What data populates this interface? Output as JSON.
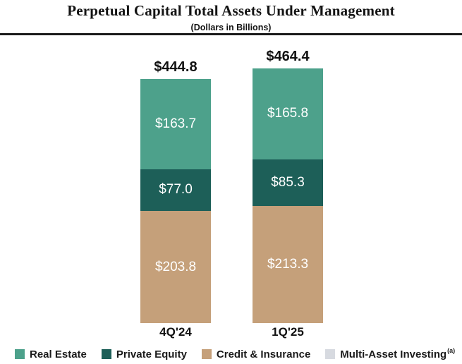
{
  "header": {
    "title": "Perpetual Capital Total Assets Under Management",
    "subtitle": "(Dollars in Billions)"
  },
  "colors": {
    "real_estate": "#4DA18B",
    "private_equity": "#1D5F58",
    "credit_insurance": "#C5A07A",
    "multi_asset_investing": "#D7DAE0",
    "text": "#141414",
    "bar_label_text": "#FFFFFF",
    "divider": "#1A1A1A"
  },
  "chart_data": {
    "type": "bar",
    "stacked": true,
    "title": "Perpetual Capital Total Assets Under Management",
    "units_note": "Dollars in Billions",
    "categories": [
      "4Q'24",
      "1Q'25"
    ],
    "series": [
      {
        "name": "Real Estate",
        "color": "#4DA18B",
        "values": [
          163.7,
          165.8
        ]
      },
      {
        "name": "Private Equity",
        "color": "#1D5F58",
        "values": [
          77.0,
          85.3
        ]
      },
      {
        "name": "Credit & Insurance",
        "color": "#C5A07A",
        "values": [
          203.8,
          213.3
        ]
      },
      {
        "name": "Multi-Asset Investing",
        "color": "#D7DAE0",
        "values": [
          null,
          null
        ]
      }
    ],
    "totals": [
      444.8,
      464.4
    ],
    "value_prefix": "$",
    "axis": "none",
    "grid": false,
    "legend_position": "bottom",
    "value_labels_inside_segments": true,
    "total_labels_above_bars": true
  },
  "legend": {
    "items": [
      {
        "label": "Real Estate",
        "color": "#4DA18B",
        "footnote": ""
      },
      {
        "label": "Private Equity",
        "color": "#1D5F58",
        "footnote": ""
      },
      {
        "label": "Credit & Insurance",
        "color": "#C5A07A",
        "footnote": ""
      },
      {
        "label": "Multi-Asset Investing",
        "color": "#D7DAE0",
        "footnote": "(a)"
      }
    ]
  }
}
